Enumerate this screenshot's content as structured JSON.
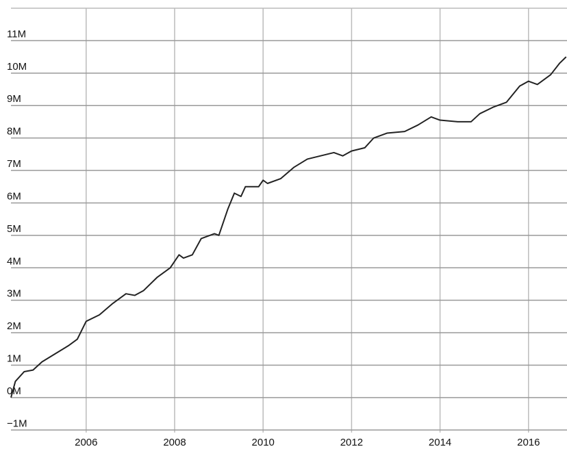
{
  "chart_data": {
    "type": "line",
    "x": [
      2004.3,
      2004.4,
      2004.6,
      2004.8,
      2005.0,
      2005.3,
      2005.6,
      2005.8,
      2006.0,
      2006.3,
      2006.6,
      2006.9,
      2007.1,
      2007.3,
      2007.6,
      2007.9,
      2008.1,
      2008.2,
      2008.4,
      2008.6,
      2008.9,
      2009.0,
      2009.2,
      2009.35,
      2009.5,
      2009.6,
      2009.9,
      2010.0,
      2010.1,
      2010.4,
      2010.7,
      2011.0,
      2011.3,
      2011.6,
      2011.8,
      2012.0,
      2012.3,
      2012.5,
      2012.8,
      2013.2,
      2013.5,
      2013.8,
      2014.0,
      2014.4,
      2014.7,
      2014.9,
      2015.2,
      2015.5,
      2015.8,
      2016.0,
      2016.2,
      2016.5,
      2016.7,
      2016.85
    ],
    "series": [
      {
        "color": "#222222",
        "values": [
          0,
          500000,
          800000,
          850000,
          1100000,
          1350000,
          1600000,
          1800000,
          2350000,
          2550000,
          2900000,
          3200000,
          3150000,
          3300000,
          3700000,
          4000000,
          4400000,
          4300000,
          4400000,
          4900000,
          5050000,
          5000000,
          5800000,
          6300000,
          6200000,
          6500000,
          6500000,
          6700000,
          6600000,
          6750000,
          7100000,
          7350000,
          7450000,
          7550000,
          7450000,
          7600000,
          7700000,
          8000000,
          8150000,
          8200000,
          8400000,
          8650000,
          8550000,
          8500000,
          8500000,
          8750000,
          8950000,
          9100000,
          9600000,
          9750000,
          9650000,
          9950000,
          10300000,
          10500000
        ]
      }
    ],
    "xlim": [
      2004.3,
      2016.87
    ],
    "xticks": [
      2006,
      2008,
      2010,
      2012,
      2014,
      2016
    ],
    "ylim": [
      -1500000,
      12000000
    ],
    "yticks": [
      {
        "value": -1000000,
        "label": "−1M"
      },
      {
        "value": 0,
        "label": "0M"
      },
      {
        "value": 1000000,
        "label": "1M"
      },
      {
        "value": 2000000,
        "label": "2M"
      },
      {
        "value": 3000000,
        "label": "3M"
      },
      {
        "value": 4000000,
        "label": "4M"
      },
      {
        "value": 5000000,
        "label": "5M"
      },
      {
        "value": 6000000,
        "label": "6M"
      },
      {
        "value": 7000000,
        "label": "7M"
      },
      {
        "value": 8000000,
        "label": "8M"
      },
      {
        "value": 9000000,
        "label": "9M"
      },
      {
        "value": 10000000,
        "label": "10M"
      },
      {
        "value": 11000000,
        "label": "11M"
      }
    ],
    "grid": true
  }
}
